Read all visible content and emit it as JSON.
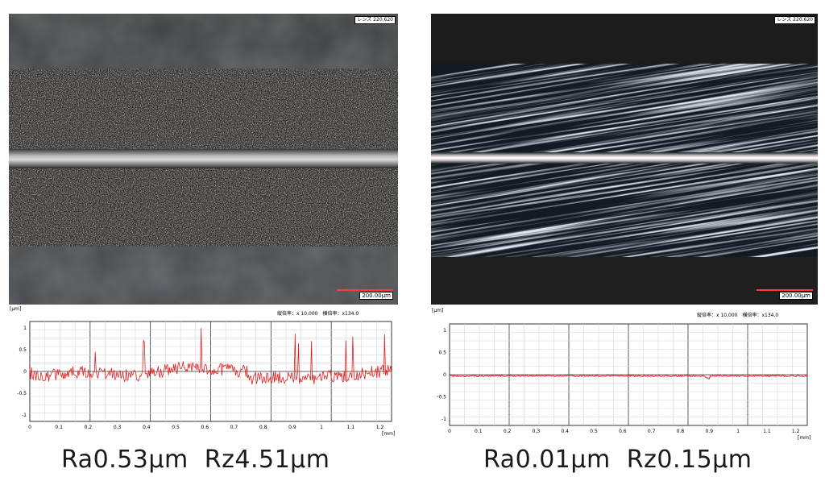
{
  "left": {
    "lens_tag": "レンズ 220.620",
    "scale_label": "200.00μm",
    "unit_label": "[μm]",
    "unit_mm": "[mm]",
    "magnification": "縦倍率：x 10,000　横倍率：x134.0",
    "y_ticks": [
      "1",
      "0.5",
      "0",
      "-0.5",
      "-1"
    ],
    "x_ticks": [
      "0",
      "0.1",
      "0.2",
      "0.3",
      "0.4",
      "0.5",
      "0.6",
      "0.7",
      "0.8",
      "0.9",
      "1",
      "1.1",
      "1.2"
    ],
    "ra": "Ra0.53μm",
    "rz": "Rz4.51μm"
  },
  "right": {
    "lens_tag": "レンズ 220.620",
    "scale_label": "200.00μm",
    "unit_label": "[μm]",
    "unit_mm": "[mm]",
    "magnification": "縦倍率：x 10,000　横倍率：x134.0",
    "y_ticks": [
      "1",
      "0.5",
      "0",
      "-0.5",
      "-1"
    ],
    "x_ticks": [
      "0",
      "0.1",
      "0.2",
      "0.3",
      "0.4",
      "0.5",
      "0.6",
      "0.7",
      "0.8",
      "0.9",
      "1",
      "1.1",
      "1.2"
    ],
    "ra": "Ra0.01μm",
    "rz": "Rz0.15μm"
  },
  "colors": {
    "profile_line": "#e02020",
    "grid_minor": "#d6d6d6",
    "grid_major": "#333333"
  }
}
